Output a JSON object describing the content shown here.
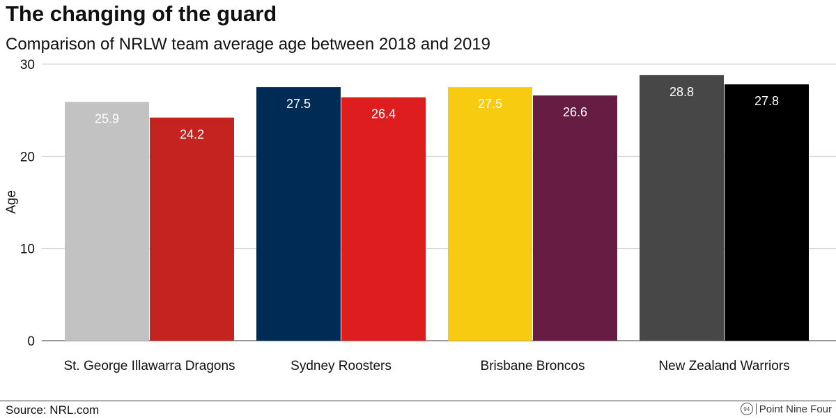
{
  "header": {
    "title": "The changing of the guard",
    "subtitle": "Comparison of NRLW team average age between 2018 and 2019"
  },
  "footer": {
    "source": "Source: NRL.com",
    "brand_logo": "94",
    "brand_name": "Point Nine Four"
  },
  "chart_data": {
    "type": "bar",
    "title": "The changing of the guard",
    "subtitle": "Comparison of NRLW team average age between 2018 and 2019",
    "xlabel": "",
    "ylabel": "Age",
    "ylim": [
      0,
      30
    ],
    "yticks": [
      0,
      10,
      20,
      30
    ],
    "grid": true,
    "legend": "none",
    "categories": [
      "St. George Illawarra Dragons",
      "Sydney Roosters",
      "Brisbane Broncos",
      "New Zealand Warriors"
    ],
    "series": [
      {
        "values": [
          25.9,
          27.5,
          27.5,
          28.8
        ],
        "colors": [
          "#c2c2c2",
          "#002b55",
          "#f7cb10",
          "#474747"
        ]
      },
      {
        "values": [
          24.2,
          26.4,
          26.6,
          27.8
        ],
        "colors": [
          "#c52320",
          "#de1e1e",
          "#661c43",
          "#000000"
        ]
      }
    ]
  }
}
